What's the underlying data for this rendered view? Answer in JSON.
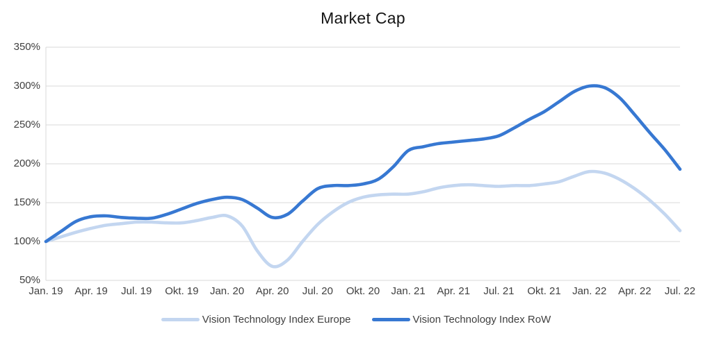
{
  "chart_data": {
    "type": "line",
    "title": "Market Cap",
    "x_unit": "month",
    "x_range": [
      "Jan. 19",
      "Jul. 22"
    ],
    "x_tick_labels": [
      "Jan. 19",
      "Apr. 19",
      "Jul. 19",
      "Okt. 19",
      "Jan. 20",
      "Apr. 20",
      "Jul. 20",
      "Okt. 20",
      "Jan. 21",
      "Apr. 21",
      "Jul. 21",
      "Okt. 21",
      "Jan. 22",
      "Apr. 22",
      "Jul. 22"
    ],
    "y_tick_labels": [
      "50%",
      "100%",
      "150%",
      "200%",
      "250%",
      "300%",
      "350%"
    ],
    "y_tick_values": [
      50,
      100,
      150,
      200,
      250,
      300,
      350
    ],
    "ylim": [
      50,
      350
    ],
    "grid": "horizontal",
    "gridline_color": "#d9d9d9",
    "axis_text_color": "#404040",
    "legend_position": "bottom",
    "series": [
      {
        "name": "Vision Technology Index Europe",
        "color": "#c3d6f0",
        "values": [
          100,
          106,
          112,
          117,
          121,
          123,
          125,
          125,
          124,
          124,
          127,
          131,
          133,
          120,
          88,
          68,
          76,
          100,
          122,
          138,
          150,
          157,
          160,
          161,
          161,
          164,
          169,
          172,
          173,
          172,
          171,
          172,
          172,
          174,
          177,
          184,
          190,
          188,
          180,
          168,
          153,
          135,
          114
        ]
      },
      {
        "name": "Vision Technology Index RoW",
        "color": "#3778d2",
        "values": [
          100,
          113,
          126,
          132,
          133,
          131,
          130,
          130,
          135,
          142,
          149,
          154,
          157,
          154,
          143,
          131,
          135,
          152,
          168,
          172,
          172,
          174,
          180,
          196,
          217,
          222,
          226,
          228,
          230,
          232,
          236,
          246,
          257,
          267,
          280,
          293,
          300,
          298,
          285,
          263,
          240,
          218,
          193
        ]
      }
    ]
  }
}
